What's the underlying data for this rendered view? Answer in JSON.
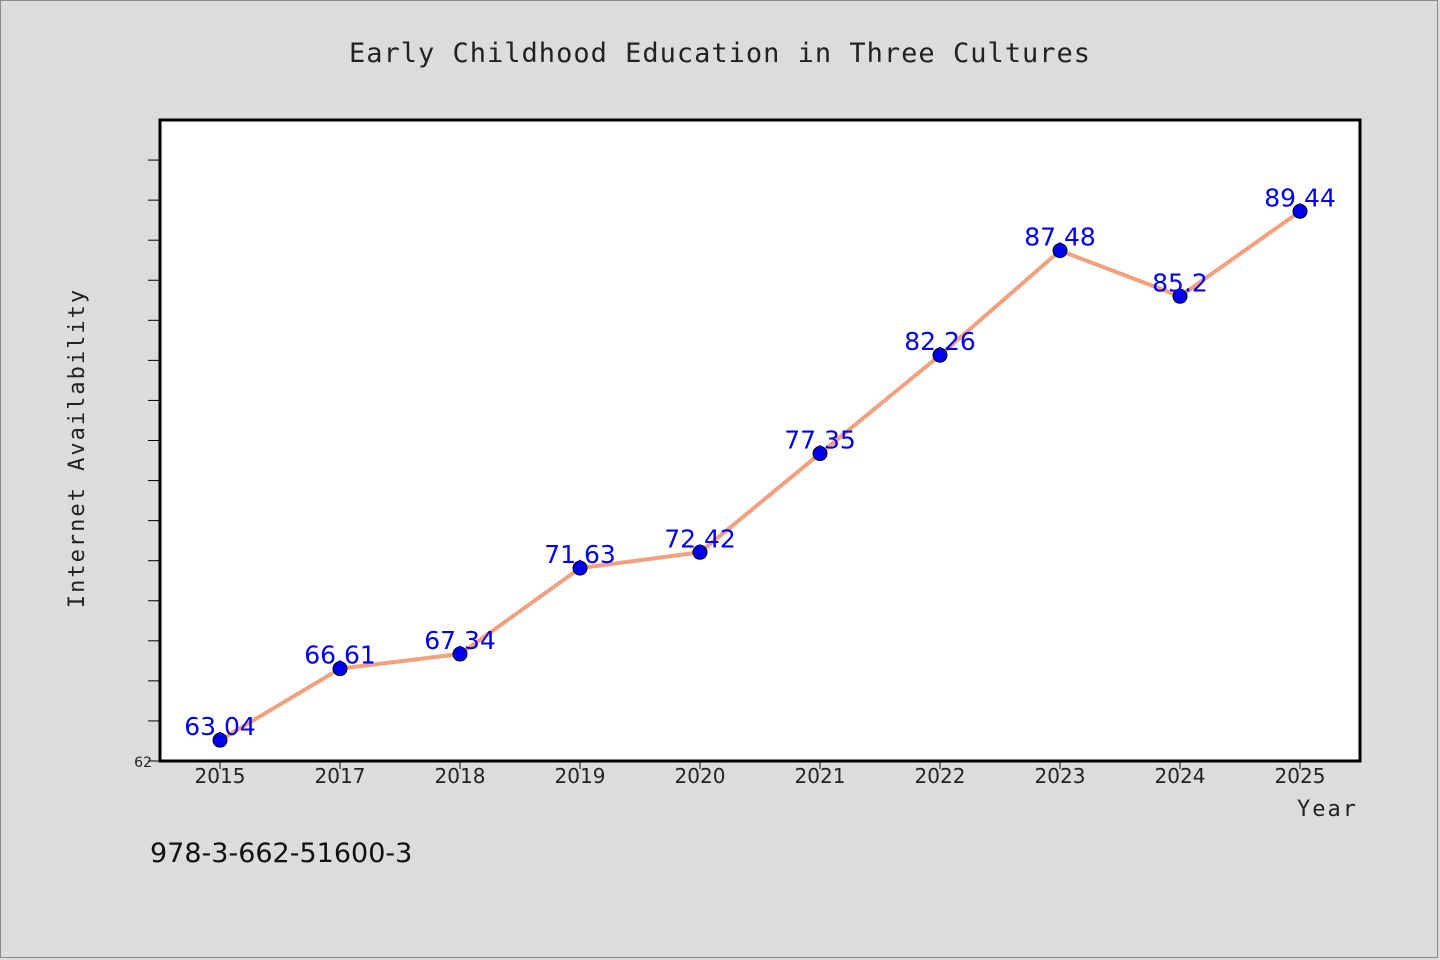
{
  "chart_data": {
    "type": "line",
    "title": "Early Childhood Education in Three Cultures",
    "xlabel": "Year",
    "ylabel": "Internet Availability",
    "categories": [
      "2015",
      "2017",
      "2018",
      "2019",
      "2020",
      "2021",
      "2022",
      "2023",
      "2024",
      "2025"
    ],
    "series": [
      {
        "values": [
          63.04,
          66.61,
          67.34,
          71.63,
          72.42,
          77.35,
          82.26,
          87.48,
          85.2,
          89.44
        ],
        "labels": [
          "63.04",
          "66.61",
          "67.34",
          "71.63",
          "72.42",
          "77.35",
          "82.26",
          "87.48",
          "85.2",
          "89.44"
        ],
        "line_color": "#f4a07f",
        "marker_color": "#0000ee"
      }
    ],
    "ylim": [
      62,
      94
    ],
    "yticks_labeled": [
      "62"
    ],
    "grid": false,
    "legend": "none"
  },
  "footer": {
    "isbn": "978-3-662-51600-3"
  }
}
